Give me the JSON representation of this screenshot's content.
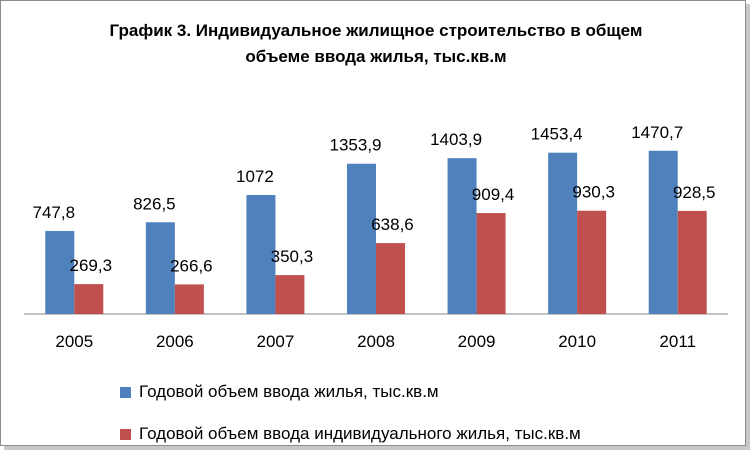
{
  "title": {
    "line1": "График 3. Индивидуальное жилищное строительство в общем",
    "line2": "объеме ввода жилья, тыс.кв.м"
  },
  "colors": {
    "series1": "#4F81BD",
    "series2": "#C0504D",
    "axis": "#868686"
  },
  "chart_data": {
    "type": "bar",
    "title": "График 3. Индивидуальное жилищное строительство в общем объеме ввода жилья, тыс.кв.м",
    "categories": [
      "2005",
      "2006",
      "2007",
      "2008",
      "2009",
      "2010",
      "2011"
    ],
    "series": [
      {
        "name": "Годовой объем ввода жилья, тыс.кв.м",
        "values": [
          747.8,
          826.5,
          1072,
          1353.9,
          1403.9,
          1453.4,
          1470.7
        ],
        "labels": [
          "747,8",
          "826,5",
          "1072",
          "1353,9",
          "1403,9",
          "1453,4",
          "1470,7"
        ]
      },
      {
        "name": "Годовой объем ввода индивидуального жилья, тыс.кв.м",
        "values": [
          269.3,
          266.6,
          350.3,
          638.6,
          909.4,
          930.3,
          928.5
        ],
        "labels": [
          "269,3",
          "266,6",
          "350,3",
          "638,6",
          "909,4",
          "930,3",
          "928,5"
        ]
      }
    ],
    "legend": "bottom",
    "grid": false
  }
}
